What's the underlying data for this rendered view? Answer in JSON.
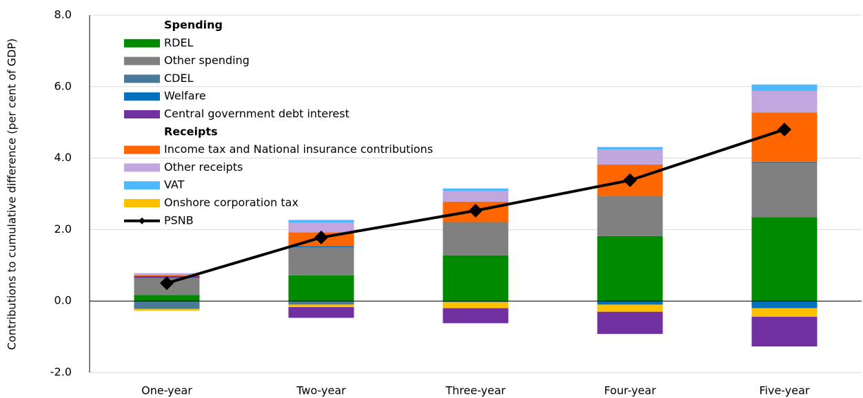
{
  "chart_data": {
    "type": "stacked-bar-line",
    "y_label": "Contributions to cumulative difference (per cent of GDP)",
    "legend_headings": [
      "Spending",
      "Receipts"
    ],
    "categories": [
      "One-year",
      "Two-year",
      "Three-year",
      "Four-year",
      "Five-year"
    ],
    "ylim": [
      -2,
      8
    ],
    "yticks": [
      {
        "value": -2,
        "label": "-2.0"
      },
      {
        "value": 0,
        "label": "0.0"
      },
      {
        "value": 2,
        "label": "2.0"
      },
      {
        "value": 4,
        "label": "4.0"
      },
      {
        "value": 6,
        "label": "6.0"
      },
      {
        "value": 8,
        "label": "8.0"
      }
    ],
    "grid": true,
    "series": [
      {
        "name": "RDEL",
        "color": "#008a00",
        "values": [
          0.17,
          0.72,
          1.28,
          1.82,
          2.35
        ]
      },
      {
        "name": "Other spending",
        "color": "#808080",
        "values": [
          0.48,
          0.78,
          0.93,
          1.1,
          1.5
        ]
      },
      {
        "name": "CDEL",
        "color": "#4a7a99",
        "values": [
          -0.22,
          -0.1,
          -0.03,
          0.02,
          0.05
        ]
      },
      {
        "name": "Welfare",
        "color": "#0070c0",
        "values": [
          0,
          0.04,
          0,
          -0.1,
          -0.2
        ]
      },
      {
        "name": "Central government debt interest",
        "color": "#7030a0",
        "values": [
          0.05,
          -0.3,
          -0.42,
          -0.62,
          -0.83
        ]
      },
      {
        "name": "Income tax and National insurance contributions",
        "color": "#ff6600",
        "values": [
          0.03,
          0.38,
          0.57,
          0.88,
          1.38
        ]
      },
      {
        "name": "Other receipts",
        "color": "#c0a6dc",
        "values": [
          0.05,
          0.28,
          0.3,
          0.42,
          0.6
        ]
      },
      {
        "name": "VAT",
        "color": "#4db8ff",
        "values": [
          0,
          0.07,
          0.07,
          0.07,
          0.18
        ]
      },
      {
        "name": "Onshore corporation tax",
        "color": "#ffc000",
        "values": [
          -0.05,
          -0.07,
          -0.17,
          -0.2,
          -0.24
        ]
      },
      {
        "name": "PSNB",
        "color": "#000000",
        "type": "line",
        "values": [
          0.5,
          1.78,
          2.53,
          3.38,
          4.8
        ]
      }
    ]
  }
}
